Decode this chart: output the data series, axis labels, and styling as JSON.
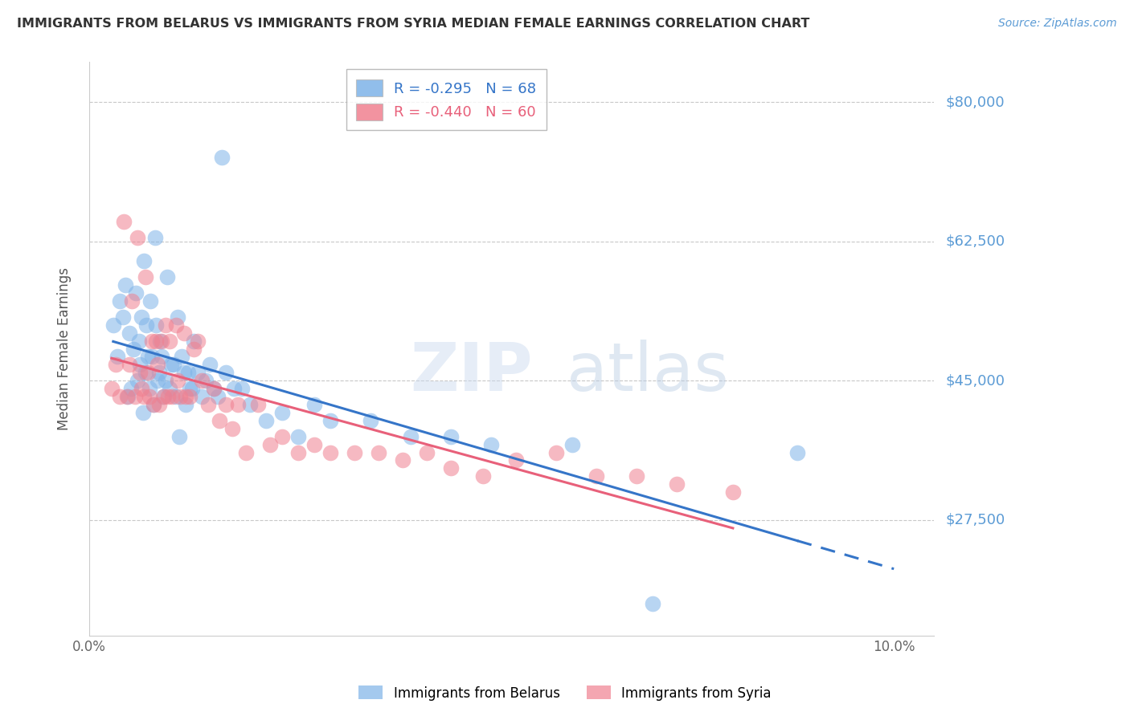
{
  "title": "IMMIGRANTS FROM BELARUS VS IMMIGRANTS FROM SYRIA MEDIAN FEMALE EARNINGS CORRELATION CHART",
  "source": "Source: ZipAtlas.com",
  "ylabel": "Median Female Earnings",
  "ytick_labels": [
    "$80,000",
    "$62,500",
    "$45,000",
    "$27,500"
  ],
  "ytick_values": [
    80000,
    62500,
    45000,
    27500
  ],
  "ylim": [
    13000,
    85000
  ],
  "xlim": [
    0.0,
    0.105
  ],
  "xtick_positions": [
    0.0,
    0.025,
    0.05,
    0.075,
    0.1
  ],
  "xtick_labels": [
    "0.0%",
    "",
    "",
    "",
    "10.0%"
  ],
  "legend_belarus_r": "-0.295",
  "legend_belarus_n": "68",
  "legend_syria_r": "-0.440",
  "legend_syria_n": "60",
  "color_belarus": "#7EB3E8",
  "color_syria": "#F08090",
  "color_line_belarus": "#3575C8",
  "color_line_syria": "#E8607A",
  "color_title": "#333333",
  "color_yticks": "#5B9BD5",
  "color_source": "#5B9BD5",
  "belarus_scatter_x": [
    0.003,
    0.0035,
    0.0038,
    0.0042,
    0.0045,
    0.0048,
    0.005,
    0.0052,
    0.0055,
    0.0058,
    0.006,
    0.0062,
    0.0063,
    0.0065,
    0.0067,
    0.0068,
    0.007,
    0.0071,
    0.0073,
    0.0075,
    0.0076,
    0.0078,
    0.008,
    0.0082,
    0.0083,
    0.0085,
    0.0087,
    0.0088,
    0.009,
    0.0092,
    0.0095,
    0.0097,
    0.01,
    0.0102,
    0.0105,
    0.0108,
    0.011,
    0.0112,
    0.0115,
    0.0118,
    0.012,
    0.0123,
    0.0125,
    0.0128,
    0.013,
    0.0135,
    0.014,
    0.0145,
    0.015,
    0.0155,
    0.016,
    0.0165,
    0.017,
    0.018,
    0.019,
    0.02,
    0.022,
    0.024,
    0.026,
    0.028,
    0.03,
    0.035,
    0.04,
    0.045,
    0.05,
    0.06,
    0.07,
    0.088
  ],
  "belarus_scatter_y": [
    52000,
    48000,
    55000,
    53000,
    57000,
    43000,
    51000,
    44000,
    49000,
    56000,
    45000,
    50000,
    47000,
    53000,
    41000,
    60000,
    46000,
    52000,
    48000,
    44000,
    55000,
    48000,
    42000,
    63000,
    52000,
    45000,
    46000,
    50000,
    48000,
    43000,
    45000,
    58000,
    44000,
    47000,
    47000,
    43000,
    53000,
    38000,
    48000,
    46000,
    42000,
    46000,
    44000,
    44000,
    50000,
    46000,
    43000,
    45000,
    47000,
    44000,
    43000,
    73000,
    46000,
    44000,
    44000,
    42000,
    40000,
    41000,
    38000,
    42000,
    40000,
    40000,
    38000,
    38000,
    37000,
    37000,
    17000,
    36000
  ],
  "syria_scatter_x": [
    0.0028,
    0.0033,
    0.0038,
    0.0043,
    0.0047,
    0.005,
    0.0053,
    0.0057,
    0.006,
    0.0063,
    0.0065,
    0.0068,
    0.007,
    0.0073,
    0.0075,
    0.0078,
    0.008,
    0.0083,
    0.0085,
    0.0087,
    0.009,
    0.0093,
    0.0095,
    0.0098,
    0.01,
    0.0103,
    0.0108,
    0.011,
    0.0113,
    0.0118,
    0.012,
    0.0125,
    0.013,
    0.0135,
    0.014,
    0.0148,
    0.0155,
    0.0162,
    0.017,
    0.0178,
    0.0185,
    0.0195,
    0.021,
    0.0225,
    0.024,
    0.026,
    0.028,
    0.03,
    0.033,
    0.036,
    0.039,
    0.042,
    0.045,
    0.049,
    0.053,
    0.058,
    0.063,
    0.068,
    0.073,
    0.08
  ],
  "syria_scatter_y": [
    44000,
    47000,
    43000,
    65000,
    43000,
    47000,
    55000,
    43000,
    63000,
    46000,
    44000,
    43000,
    58000,
    46000,
    43000,
    50000,
    42000,
    50000,
    47000,
    42000,
    50000,
    43000,
    52000,
    43000,
    50000,
    43000,
    52000,
    45000,
    43000,
    51000,
    43000,
    43000,
    49000,
    50000,
    45000,
    42000,
    44000,
    40000,
    42000,
    39000,
    42000,
    36000,
    42000,
    37000,
    38000,
    36000,
    37000,
    36000,
    36000,
    36000,
    35000,
    36000,
    34000,
    33000,
    35000,
    36000,
    33000,
    33000,
    32000,
    31000
  ]
}
